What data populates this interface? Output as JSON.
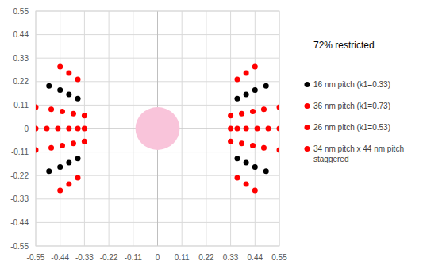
{
  "chart_data": {
    "type": "scatter",
    "title": "72% restricted",
    "xlim": [
      -0.55,
      0.55
    ],
    "ylim": [
      -0.55,
      0.55
    ],
    "xticks": [
      -0.55,
      -0.44,
      -0.33,
      -0.22,
      -0.11,
      0,
      0.11,
      0.22,
      0.33,
      0.44,
      0.55
    ],
    "yticks": [
      -0.55,
      -0.44,
      -0.33,
      -0.22,
      -0.11,
      0,
      0.11,
      0.22,
      0.33,
      0.44,
      0.55
    ],
    "grid": true,
    "legend": "right",
    "circle": {
      "x": 0,
      "y": 0,
      "r": 0.1,
      "color": "#f9c4da"
    },
    "series": [
      {
        "name": "16 nm pitch (k1=0.33)",
        "color": "#000000",
        "marker": "circle",
        "x": [
          -0.49,
          -0.44,
          -0.4,
          -0.36,
          -0.49,
          -0.44,
          -0.4,
          -0.36,
          0.36,
          0.4,
          0.44,
          0.49,
          0.36,
          0.4,
          0.44,
          0.49
        ],
        "values": [
          0.2,
          0.18,
          0.16,
          0.14,
          -0.2,
          -0.18,
          -0.16,
          -0.14,
          0.14,
          0.16,
          0.18,
          0.2,
          -0.14,
          -0.16,
          -0.18,
          -0.2
        ]
      },
      {
        "name": "36 nm pitch (k1=0.73)",
        "color": "#ff0000",
        "marker": "circle",
        "x": [
          -0.55,
          -0.5,
          -0.45,
          -0.4,
          -0.36,
          -0.33,
          0.33,
          0.36,
          0.4,
          0.45,
          0.5,
          0.55
        ],
        "values": [
          0,
          0,
          0,
          0,
          0,
          0,
          0,
          0,
          0,
          0,
          0,
          0
        ]
      },
      {
        "name": "26 nm pitch (k1=0.53)",
        "color": "#ff0000",
        "marker": "circle",
        "x": [
          -0.55,
          -0.48,
          -0.43,
          -0.38,
          -0.33,
          -0.55,
          -0.48,
          -0.43,
          -0.38,
          -0.33,
          0.33,
          0.38,
          0.43,
          0.48,
          0.55,
          0.33,
          0.38,
          0.43,
          0.48,
          0.55
        ],
        "values": [
          0.1,
          0.09,
          0.08,
          0.07,
          0.06,
          -0.1,
          -0.09,
          -0.08,
          -0.07,
          -0.06,
          0.06,
          0.07,
          0.08,
          0.09,
          0.1,
          -0.06,
          -0.07,
          -0.08,
          -0.09,
          -0.1
        ]
      },
      {
        "name": "34 nm pitch x 44 nm pitch staggered",
        "color": "#ff0000",
        "marker": "circle",
        "x": [
          -0.44,
          -0.4,
          -0.36,
          -0.44,
          -0.4,
          -0.36,
          0.36,
          0.4,
          0.44,
          0.36,
          0.4,
          0.44
        ],
        "values": [
          0.29,
          0.26,
          0.23,
          -0.29,
          -0.26,
          -0.23,
          0.23,
          0.26,
          0.29,
          -0.23,
          -0.26,
          -0.29
        ]
      }
    ]
  }
}
